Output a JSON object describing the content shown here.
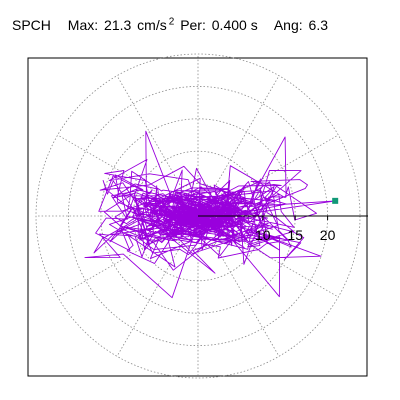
{
  "header": {
    "station": "SPCH",
    "max_label": "Max:",
    "max_value": "21.3",
    "max_unit": "cm/s",
    "max_unit_exp": "2",
    "per_label": "Per:",
    "per_value": "0.400 s",
    "ang_label": "Ang:",
    "ang_value": "6.3"
  },
  "chart_data": {
    "type": "scatter",
    "title": "",
    "xlabel": "",
    "ylabel": "",
    "r_max": 25,
    "r_rings": [
      5,
      10,
      15,
      20,
      25
    ],
    "spokes_deg": [
      0,
      30,
      60,
      90,
      120,
      150,
      180,
      210,
      240,
      270,
      300,
      330
    ],
    "radial_tick_labels": [
      "10",
      "15",
      "20"
    ],
    "radial_tick_values": [
      10,
      15,
      20
    ],
    "max_marker": {
      "r": 21.3,
      "angle_deg": 6.3,
      "color": "#119977"
    },
    "trace_color": "#9900dd",
    "grid": true
  }
}
